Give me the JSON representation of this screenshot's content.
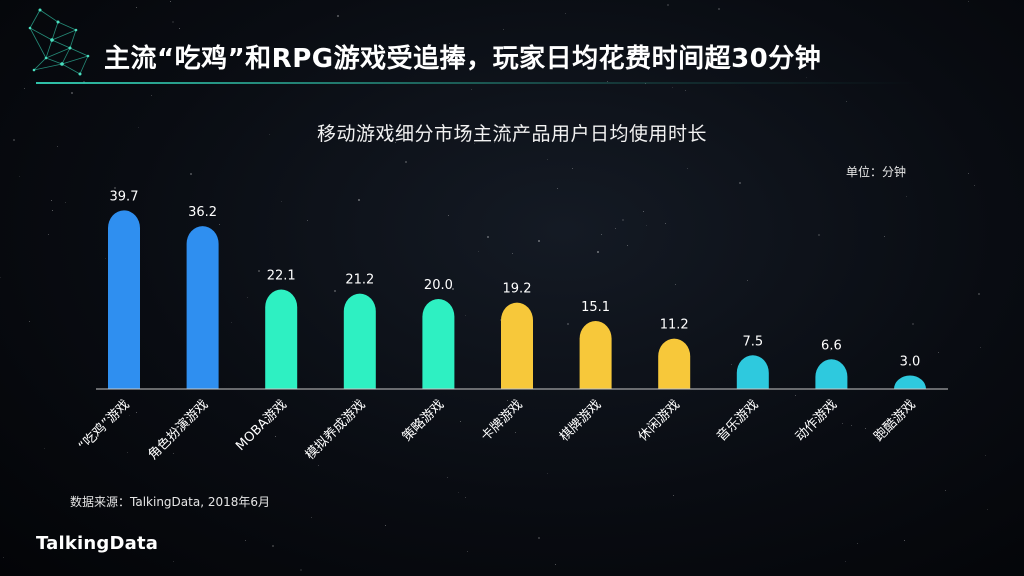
{
  "headline": "主流“吃鸡”和RPG游戏受追捧，玩家日均花费时间超30分钟",
  "unit_label": "单位：分钟",
  "source_note": "数据来源：TalkingData, 2018年6月",
  "logo_text": "TalkingData",
  "colors": {
    "blue": "#2f8ff0",
    "green": "#2ef0c2",
    "yellow": "#f7c83a",
    "cyan": "#2ec9de",
    "axis": "#c8c8c8",
    "accent": "#34d6ba"
  },
  "chart_data": {
    "type": "bar",
    "title": "移动游戏细分市场主流产品用户日均使用时长",
    "xlabel": "",
    "ylabel": "",
    "unit": "分钟",
    "ylim": [
      0,
      40
    ],
    "grid": false,
    "legend": "none",
    "categories": [
      "“吃鸡”游戏",
      "角色扮演游戏",
      "MOBA游戏",
      "模拟养成游戏",
      "策略游戏",
      "卡牌游戏",
      "棋牌游戏",
      "休闲游戏",
      "音乐游戏",
      "动作游戏",
      "跑酷游戏"
    ],
    "values": [
      39.7,
      36.2,
      22.1,
      21.2,
      20.0,
      19.2,
      15.1,
      11.2,
      7.5,
      6.6,
      3.0
    ],
    "value_labels": [
      "39.7",
      "36.2",
      "22.1",
      "21.2",
      "20.0",
      "19.2",
      "15.1",
      "11.2",
      "7.5",
      "6.6",
      "3.0"
    ],
    "bar_colors": [
      "blue",
      "blue",
      "green",
      "green",
      "green",
      "yellow",
      "yellow",
      "yellow",
      "cyan",
      "cyan",
      "cyan"
    ]
  }
}
